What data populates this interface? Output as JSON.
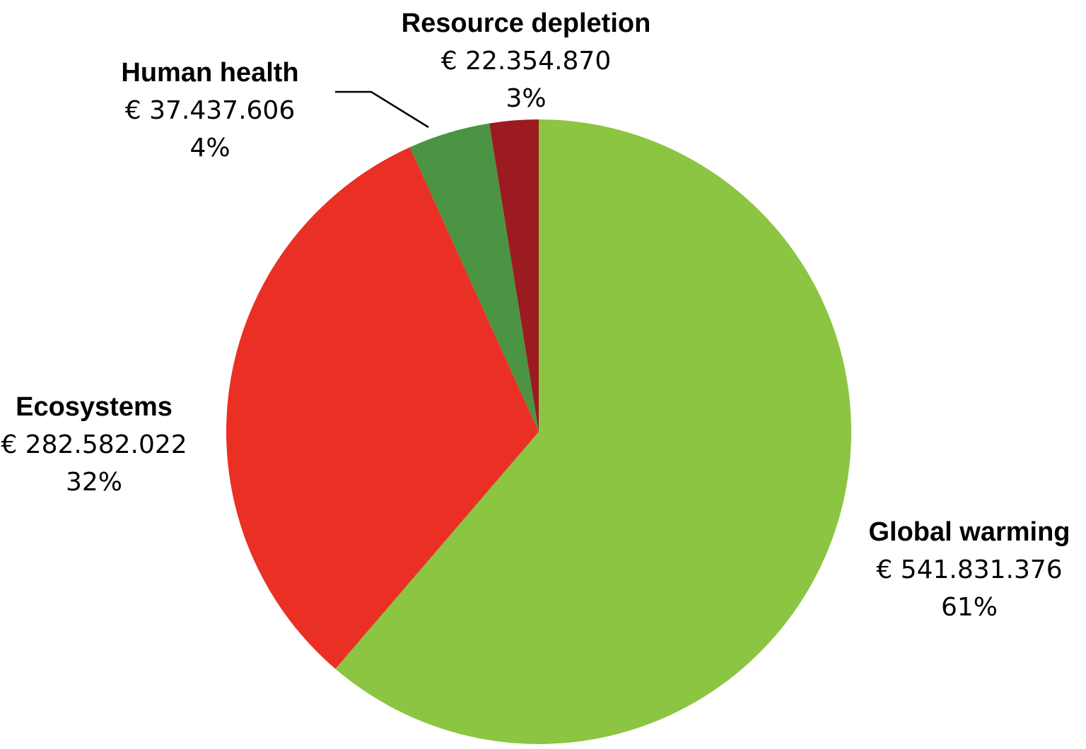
{
  "chart_data": {
    "type": "pie",
    "currency": "€",
    "slices": [
      {
        "label": "Global warming",
        "value": 541831376,
        "value_text": "€ 541.831.376",
        "percent_text": "61%",
        "color": "#8BC541"
      },
      {
        "label": "Ecosystems",
        "value": 282582022,
        "value_text": "€ 282.582.022",
        "percent_text": "32%",
        "color": "#EA3024"
      },
      {
        "label": "Human health",
        "value": 37437606,
        "value_text": "€ 37.437.606",
        "percent_text": "4%",
        "color": "#4A9443"
      },
      {
        "label": "Resource depletion",
        "value": 22354870,
        "value_text": "€ 22.354.870",
        "percent_text": "3%",
        "color": "#9B1B20"
      }
    ],
    "start_angle": "12 o'clock",
    "direction": "clockwise",
    "legend": "none (direct labels)"
  }
}
